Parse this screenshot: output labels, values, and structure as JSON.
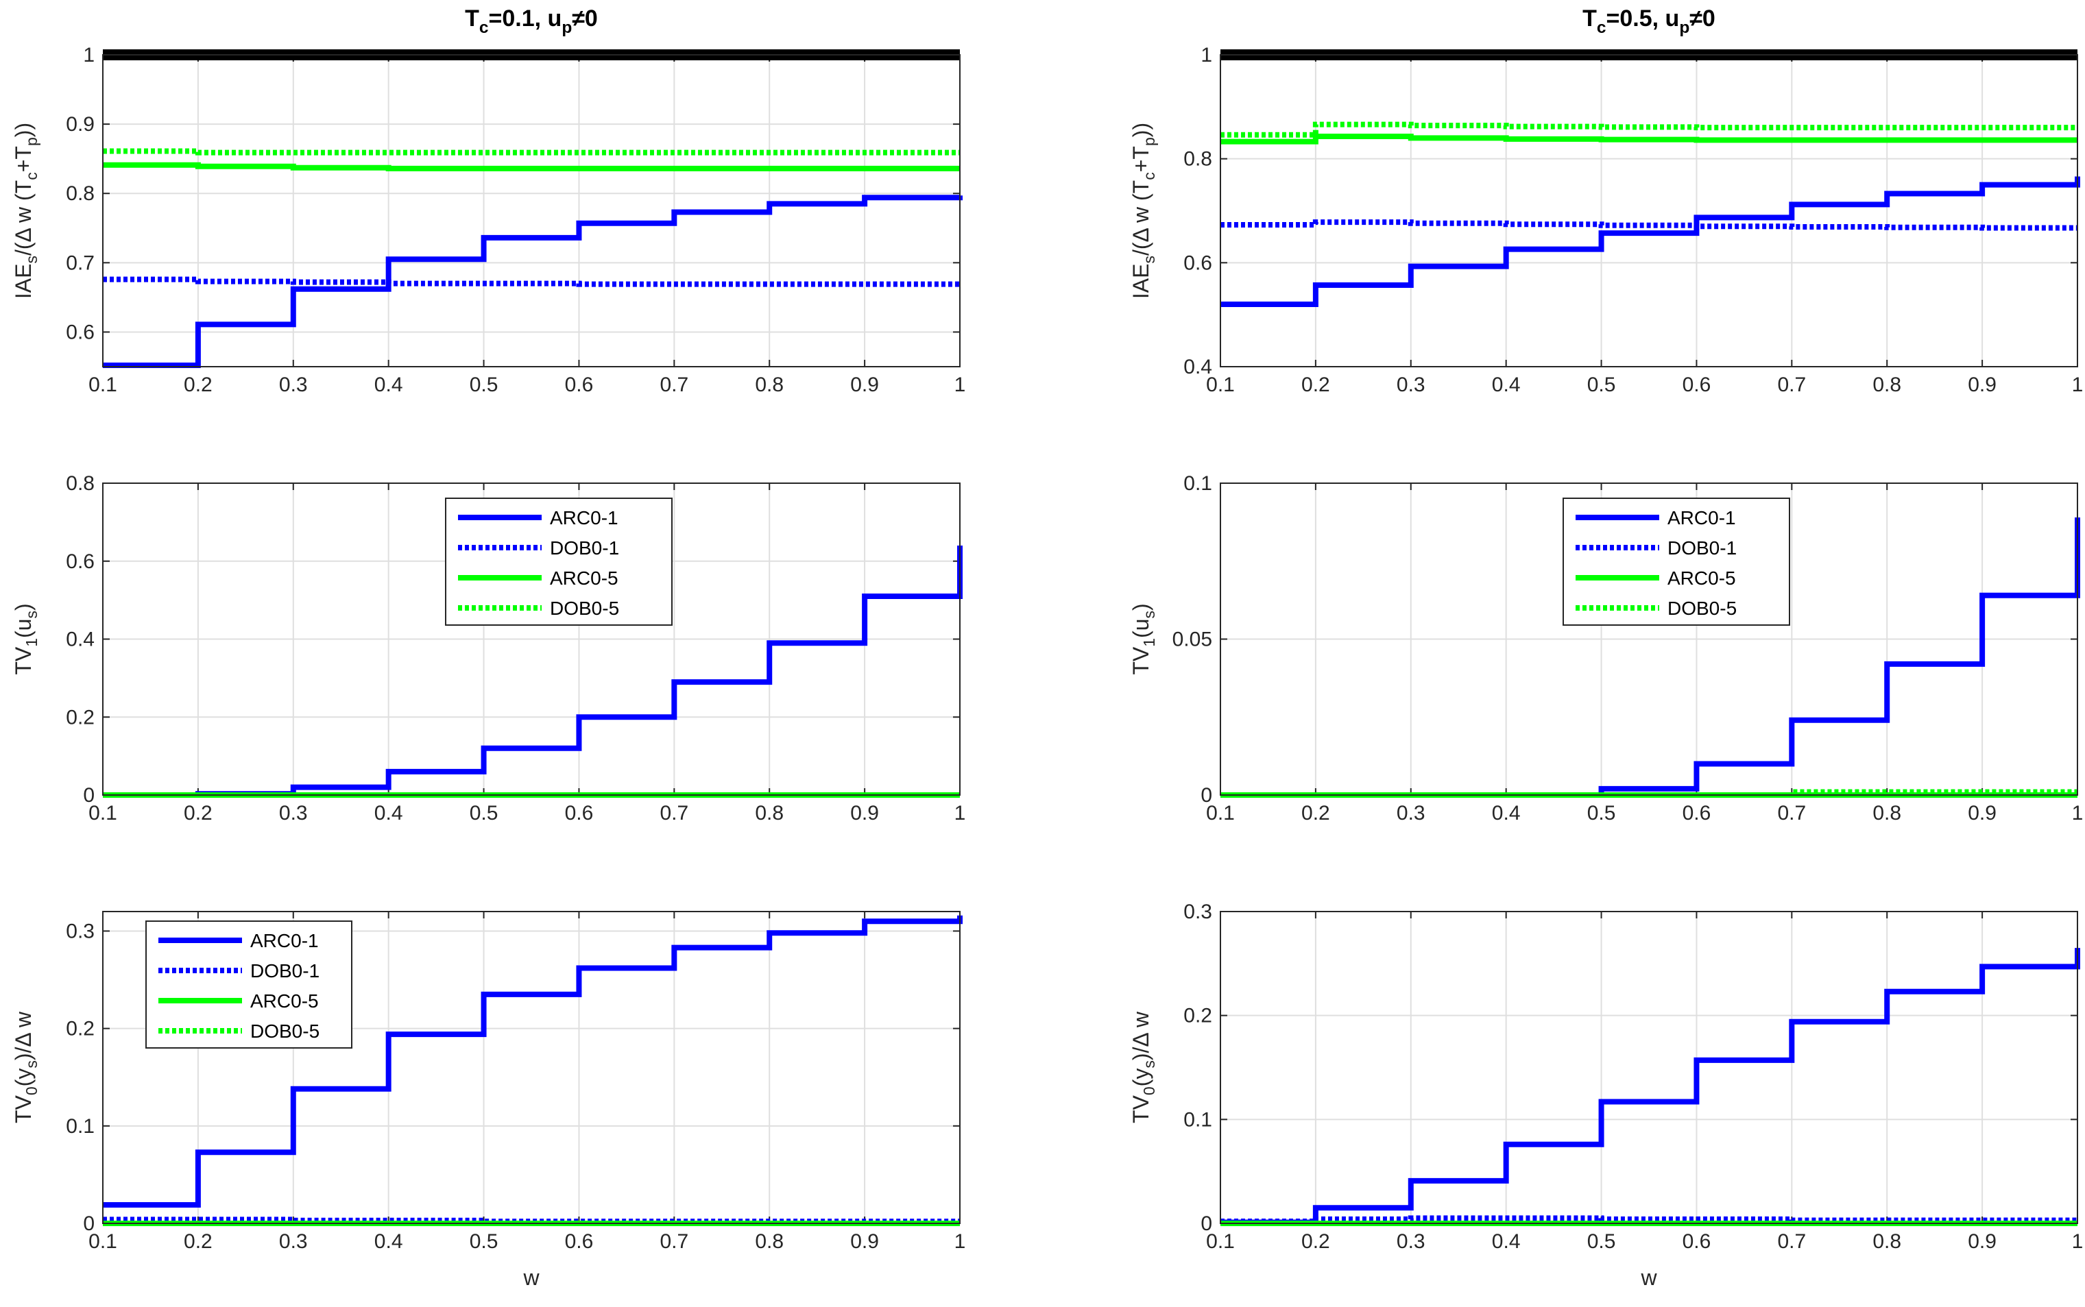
{
  "chart_data": [
    {
      "id": "left-top",
      "type": "line",
      "title": "T_c=0.1, u_p≠0",
      "title_parts": [
        "T",
        "c",
        "=0.1, u",
        "p",
        "≠0"
      ],
      "xlabel": "",
      "ylabel_parts": [
        "IAE",
        "s",
        "/(Δ w (T",
        "c",
        "+T",
        "p",
        "))"
      ],
      "xlim": [
        0.1,
        1
      ],
      "ylim": [
        0.55,
        1
      ],
      "xticks": [
        "0.1",
        "0.2",
        "0.3",
        "0.4",
        "0.5",
        "0.6",
        "0.7",
        "0.8",
        "0.9",
        "1"
      ],
      "yticks": [
        "0.6",
        "0.7",
        "0.8",
        "0.9",
        "1"
      ],
      "grid": true,
      "legend": null,
      "x": [
        0.1,
        0.2,
        0.3,
        0.4,
        0.5,
        0.6,
        0.7,
        0.8,
        0.9,
        1.0
      ],
      "series": [
        {
          "name": "ARC0-1",
          "color": "#0000ff",
          "dash": "solid",
          "values": [
            0.552,
            0.611,
            0.662,
            0.705,
            0.736,
            0.757,
            0.773,
            0.785,
            0.794,
            0.797
          ]
        },
        {
          "name": "DOB0-1",
          "color": "#0000ff",
          "dash": "dotted",
          "values": [
            0.676,
            0.673,
            0.672,
            0.67,
            0.67,
            0.669,
            0.669,
            0.669,
            0.669,
            0.669
          ]
        },
        {
          "name": "ARC0-5",
          "color": "#00ff00",
          "dash": "solid",
          "values": [
            0.841,
            0.839,
            0.837,
            0.836,
            0.836,
            0.836,
            0.836,
            0.836,
            0.836,
            0.836
          ]
        },
        {
          "name": "DOB0-5",
          "color": "#00ff00",
          "dash": "dotted",
          "values": [
            0.861,
            0.859,
            0.859,
            0.859,
            0.859,
            0.859,
            0.859,
            0.859,
            0.859,
            0.859
          ]
        },
        {
          "name": "",
          "color": "#000000",
          "dash": "solid",
          "values": [
            1,
            1,
            1,
            1,
            1,
            1,
            1,
            1,
            1,
            1
          ]
        }
      ]
    },
    {
      "id": "right-top",
      "type": "line",
      "title": "T_c=0.5, u_p≠0",
      "title_parts": [
        "T",
        "c",
        "=0.5, u",
        "p",
        "≠0"
      ],
      "xlabel": "",
      "ylabel_parts": [
        "IAE",
        "s",
        "/(Δ w (T",
        "c",
        "+T",
        "p",
        "))"
      ],
      "xlim": [
        0.1,
        1
      ],
      "ylim": [
        0.4,
        1
      ],
      "xticks": [
        "0.1",
        "0.2",
        "0.3",
        "0.4",
        "0.5",
        "0.6",
        "0.7",
        "0.8",
        "0.9",
        "1"
      ],
      "yticks": [
        "0.4",
        "0.6",
        "0.8",
        "1"
      ],
      "grid": true,
      "legend": null,
      "x": [
        0.1,
        0.2,
        0.3,
        0.4,
        0.5,
        0.6,
        0.7,
        0.8,
        0.9,
        1.0
      ],
      "series": [
        {
          "name": "ARC0-1",
          "color": "#0000ff",
          "dash": "solid",
          "values": [
            0.52,
            0.557,
            0.593,
            0.626,
            0.657,
            0.687,
            0.712,
            0.733,
            0.75,
            0.766
          ]
        },
        {
          "name": "DOB0-1",
          "color": "#0000ff",
          "dash": "dotted",
          "values": [
            0.673,
            0.678,
            0.676,
            0.674,
            0.672,
            0.67,
            0.669,
            0.668,
            0.667,
            0.667
          ]
        },
        {
          "name": "ARC0-5",
          "color": "#00ff00",
          "dash": "solid",
          "values": [
            0.833,
            0.843,
            0.84,
            0.838,
            0.837,
            0.836,
            0.836,
            0.836,
            0.836,
            0.836
          ]
        },
        {
          "name": "DOB0-5",
          "color": "#00ff00",
          "dash": "dotted",
          "values": [
            0.846,
            0.866,
            0.864,
            0.862,
            0.861,
            0.86,
            0.86,
            0.86,
            0.86,
            0.86
          ]
        },
        {
          "name": "",
          "color": "#000000",
          "dash": "solid",
          "values": [
            1,
            1,
            1,
            1,
            1,
            1,
            1,
            1,
            1,
            1
          ]
        }
      ]
    },
    {
      "id": "left-mid",
      "type": "line",
      "title": "",
      "xlabel": "",
      "ylabel_parts": [
        "TV",
        "1",
        "(u",
        "s",
        ")"
      ],
      "xlim": [
        0.1,
        1
      ],
      "ylim": [
        0,
        0.8
      ],
      "xticks": [
        "0.1",
        "0.2",
        "0.3",
        "0.4",
        "0.5",
        "0.6",
        "0.7",
        "0.8",
        "0.9",
        "1"
      ],
      "yticks": [
        "0",
        "0.2",
        "0.4",
        "0.6",
        "0.8"
      ],
      "grid": true,
      "legend": "upper-center",
      "x": [
        0.1,
        0.2,
        0.3,
        0.4,
        0.5,
        0.6,
        0.7,
        0.8,
        0.9,
        1.0
      ],
      "series": [
        {
          "name": "ARC0-1",
          "color": "#0000ff",
          "dash": "solid",
          "values": [
            0.0,
            0.003,
            0.02,
            0.06,
            0.12,
            0.2,
            0.29,
            0.39,
            0.51,
            0.64
          ]
        },
        {
          "name": "DOB0-1",
          "color": "#0000ff",
          "dash": "dotted",
          "values": [
            0,
            0,
            0,
            0,
            0,
            0,
            0,
            0,
            0,
            0
          ]
        },
        {
          "name": "ARC0-5",
          "color": "#00ff00",
          "dash": "solid",
          "values": [
            0,
            0,
            0,
            0,
            0,
            0,
            0,
            0,
            0,
            0
          ]
        },
        {
          "name": "DOB0-5",
          "color": "#00ff00",
          "dash": "dotted",
          "values": [
            0,
            0,
            0,
            0,
            0,
            0,
            0,
            0,
            0,
            0
          ]
        }
      ]
    },
    {
      "id": "right-mid",
      "type": "line",
      "title": "",
      "xlabel": "",
      "ylabel_parts": [
        "TV",
        "1",
        "(u",
        "s",
        ")"
      ],
      "xlim": [
        0.1,
        1
      ],
      "ylim": [
        0,
        0.1
      ],
      "xticks": [
        "0.1",
        "0.2",
        "0.3",
        "0.4",
        "0.5",
        "0.6",
        "0.7",
        "0.8",
        "0.9",
        "1"
      ],
      "yticks": [
        "0",
        "0.05",
        "0.1"
      ],
      "grid": true,
      "legend": "upper-center",
      "x": [
        0.1,
        0.2,
        0.3,
        0.4,
        0.5,
        0.6,
        0.7,
        0.8,
        0.9,
        1.0
      ],
      "series": [
        {
          "name": "ARC0-1",
          "color": "#0000ff",
          "dash": "solid",
          "values": [
            0,
            0,
            0,
            0,
            0.002,
            0.01,
            0.024,
            0.042,
            0.064,
            0.089
          ]
        },
        {
          "name": "DOB0-1",
          "color": "#0000ff",
          "dash": "dotted",
          "values": [
            0,
            0,
            0,
            0,
            0,
            0,
            0,
            0,
            0,
            0
          ]
        },
        {
          "name": "ARC0-5",
          "color": "#00ff00",
          "dash": "solid",
          "values": [
            0,
            0,
            0,
            0,
            0,
            0,
            0,
            0,
            0,
            0
          ]
        },
        {
          "name": "DOB0-5",
          "color": "#00ff00",
          "dash": "dotted",
          "values": [
            0,
            0,
            0,
            0,
            0,
            0,
            0.001,
            0.001,
            0.001,
            0.001
          ]
        }
      ]
    },
    {
      "id": "left-bot",
      "type": "line",
      "title": "",
      "xlabel": "w",
      "ylabel_parts": [
        "TV",
        "0",
        "(y",
        "s",
        ")/Δ w"
      ],
      "xlim": [
        0.1,
        1
      ],
      "ylim": [
        0,
        0.32
      ],
      "xticks": [
        "0.1",
        "0.2",
        "0.3",
        "0.4",
        "0.5",
        "0.6",
        "0.7",
        "0.8",
        "0.9",
        "1"
      ],
      "yticks": [
        "0",
        "0.1",
        "0.2",
        "0.3"
      ],
      "grid": true,
      "legend": "upper-left",
      "x": [
        0.1,
        0.2,
        0.3,
        0.4,
        0.5,
        0.6,
        0.7,
        0.8,
        0.9,
        1.0
      ],
      "series": [
        {
          "name": "ARC0-1",
          "color": "#0000ff",
          "dash": "solid",
          "values": [
            0.019,
            0.073,
            0.138,
            0.194,
            0.235,
            0.262,
            0.283,
            0.298,
            0.31,
            0.316
          ]
        },
        {
          "name": "DOB0-1",
          "color": "#0000ff",
          "dash": "dotted",
          "values": [
            0.004,
            0.004,
            0.003,
            0.003,
            0.002,
            0.002,
            0.002,
            0.002,
            0.002,
            0.002
          ]
        },
        {
          "name": "ARC0-5",
          "color": "#00ff00",
          "dash": "solid",
          "values": [
            0,
            0,
            0,
            0,
            0,
            0,
            0,
            0,
            0,
            0
          ]
        },
        {
          "name": "DOB0-5",
          "color": "#00ff00",
          "dash": "dotted",
          "values": [
            0,
            0,
            0,
            0,
            0,
            0,
            0,
            0,
            0,
            0
          ]
        }
      ]
    },
    {
      "id": "right-bot",
      "type": "line",
      "title": "",
      "xlabel": "w",
      "ylabel_parts": [
        "TV",
        "0",
        "(y",
        "s",
        ")/Δ w"
      ],
      "xlim": [
        0.1,
        1
      ],
      "ylim": [
        0,
        0.3
      ],
      "xticks": [
        "0.1",
        "0.2",
        "0.3",
        "0.4",
        "0.5",
        "0.6",
        "0.7",
        "0.8",
        "0.9",
        "1"
      ],
      "yticks": [
        "0",
        "0.1",
        "0.2",
        "0.3"
      ],
      "grid": true,
      "legend": null,
      "x": [
        0.1,
        0.2,
        0.3,
        0.4,
        0.5,
        0.6,
        0.7,
        0.8,
        0.9,
        1.0
      ],
      "series": [
        {
          "name": "ARC0-1",
          "color": "#0000ff",
          "dash": "solid",
          "values": [
            0.001,
            0.015,
            0.041,
            0.076,
            0.117,
            0.157,
            0.194,
            0.223,
            0.247,
            0.265
          ]
        },
        {
          "name": "DOB0-1",
          "color": "#0000ff",
          "dash": "dotted",
          "values": [
            0.002,
            0.004,
            0.005,
            0.005,
            0.004,
            0.004,
            0.003,
            0.003,
            0.003,
            0.003
          ]
        },
        {
          "name": "ARC0-5",
          "color": "#00ff00",
          "dash": "solid",
          "values": [
            0,
            0,
            0,
            0,
            0,
            0,
            0,
            0,
            0,
            0
          ]
        },
        {
          "name": "DOB0-5",
          "color": "#00ff00",
          "dash": "dotted",
          "values": [
            0,
            0,
            0,
            0,
            0,
            0,
            0,
            0,
            0,
            0
          ]
        }
      ]
    }
  ]
}
